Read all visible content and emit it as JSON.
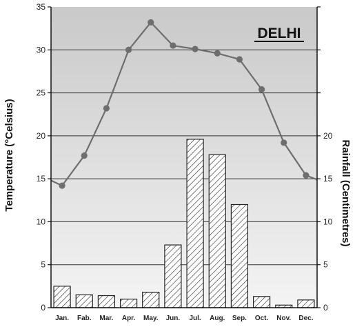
{
  "chart_data": {
    "type": "bar+line",
    "title": "DELHI",
    "categories": [
      "Jan.",
      "Fab.",
      "Mar.",
      "Apr.",
      "May.",
      "Jun.",
      "Jul.",
      "Aug.",
      "Sep.",
      "Oct.",
      "Nov.",
      "Dec."
    ],
    "series": [
      {
        "type": "line",
        "axis": "left",
        "values": [
          14.2,
          17.7,
          23.2,
          30.0,
          33.2,
          30.5,
          30.1,
          29.6,
          28.9,
          25.4,
          19.2,
          15.4
        ],
        "color": "#6e6e6e"
      },
      {
        "type": "bar",
        "axis": "right",
        "values": [
          2.5,
          1.5,
          1.4,
          1.0,
          1.8,
          7.3,
          19.6,
          17.8,
          12.0,
          1.3,
          0.3,
          0.9
        ],
        "color": "#444444"
      }
    ],
    "ylabel": "Temperature (°Celsius)",
    "y2label": "Rainfall (Centimetres)",
    "ylim": [
      0,
      35
    ],
    "y2lim": [
      0,
      35
    ],
    "yticks": [
      0,
      5,
      10,
      15,
      20,
      25,
      30,
      35
    ],
    "y2ticks": [
      0,
      5,
      10,
      15,
      20
    ],
    "grid": true,
    "background": "vertical gradient light grey"
  }
}
